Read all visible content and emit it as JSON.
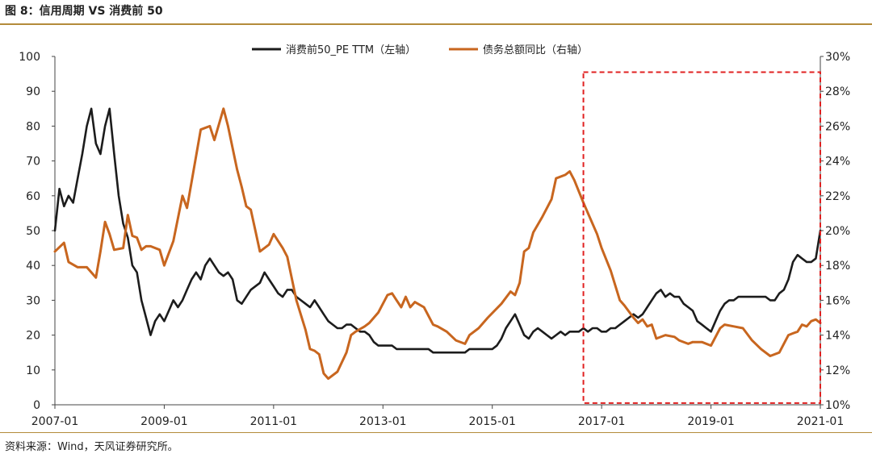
{
  "header": {
    "title": "图 8：信用周期 VS 消费前 50"
  },
  "footer": {
    "source": "资料来源：Wind，天风证券研究所。"
  },
  "colors": {
    "pe": "#1c1c1c",
    "credit": "#c8661f",
    "highlight": "#e02020",
    "axis": "#444444",
    "rule": "#b38b3a"
  },
  "chart_data": {
    "type": "line",
    "title": "图 8：信用周期 VS 消费前 50",
    "x_range": [
      "2007-01",
      "2021-01"
    ],
    "x_ticks": [
      "2007-01",
      "2009-01",
      "2011-01",
      "2013-01",
      "2015-01",
      "2017-01",
      "2019-01",
      "2021-01"
    ],
    "y_left": {
      "min": 0,
      "max": 100,
      "ticks": [
        "0",
        "10",
        "20",
        "30",
        "40",
        "50",
        "60",
        "70",
        "80",
        "90",
        "100"
      ]
    },
    "y_right": {
      "min": 10,
      "max": 30,
      "ticks": [
        "10%",
        "12%",
        "14%",
        "16%",
        "18%",
        "20%",
        "22%",
        "24%",
        "26%",
        "28%",
        "30%"
      ]
    },
    "legend": {
      "placement": "top-center"
    },
    "highlight_box": {
      "x_start": "2016-09",
      "x_end": "2021-01",
      "y_min": 0.5,
      "y_max": 95.5,
      "style": "dashed"
    },
    "series": [
      {
        "name": "消费前50_PE TTM（左轴）",
        "axis": "left",
        "color": "#1c1c1c",
        "points": [
          [
            "2007-01",
            50
          ],
          [
            "2007-02",
            62
          ],
          [
            "2007-03",
            57
          ],
          [
            "2007-04",
            60
          ],
          [
            "2007-05",
            58
          ],
          [
            "2007-06",
            65
          ],
          [
            "2007-07",
            72
          ],
          [
            "2007-08",
            80
          ],
          [
            "2007-09",
            85
          ],
          [
            "2007-10",
            75
          ],
          [
            "2007-11",
            72
          ],
          [
            "2007-12",
            80
          ],
          [
            "2008-01",
            85
          ],
          [
            "2008-02",
            72
          ],
          [
            "2008-03",
            60
          ],
          [
            "2008-04",
            52
          ],
          [
            "2008-05",
            48
          ],
          [
            "2008-06",
            40
          ],
          [
            "2008-07",
            38
          ],
          [
            "2008-08",
            30
          ],
          [
            "2008-09",
            25
          ],
          [
            "2008-10",
            20
          ],
          [
            "2008-11",
            24
          ],
          [
            "2008-12",
            26
          ],
          [
            "2009-01",
            24
          ],
          [
            "2009-02",
            27
          ],
          [
            "2009-03",
            30
          ],
          [
            "2009-04",
            28
          ],
          [
            "2009-05",
            30
          ],
          [
            "2009-06",
            33
          ],
          [
            "2009-07",
            36
          ],
          [
            "2009-08",
            38
          ],
          [
            "2009-09",
            36
          ],
          [
            "2009-10",
            40
          ],
          [
            "2009-11",
            42
          ],
          [
            "2009-12",
            40
          ],
          [
            "2010-01",
            38
          ],
          [
            "2010-02",
            37
          ],
          [
            "2010-03",
            38
          ],
          [
            "2010-04",
            36
          ],
          [
            "2010-05",
            30
          ],
          [
            "2010-06",
            29
          ],
          [
            "2010-07",
            31
          ],
          [
            "2010-08",
            33
          ],
          [
            "2010-09",
            34
          ],
          [
            "2010-10",
            35
          ],
          [
            "2010-11",
            38
          ],
          [
            "2010-12",
            36
          ],
          [
            "2011-01",
            34
          ],
          [
            "2011-02",
            32
          ],
          [
            "2011-03",
            31
          ],
          [
            "2011-04",
            33
          ],
          [
            "2011-05",
            33
          ],
          [
            "2011-06",
            31
          ],
          [
            "2011-07",
            30
          ],
          [
            "2011-08",
            29
          ],
          [
            "2011-09",
            28
          ],
          [
            "2011-10",
            30
          ],
          [
            "2011-11",
            28
          ],
          [
            "2011-12",
            26
          ],
          [
            "2012-01",
            24
          ],
          [
            "2012-02",
            23
          ],
          [
            "2012-03",
            22
          ],
          [
            "2012-04",
            22
          ],
          [
            "2012-05",
            23
          ],
          [
            "2012-06",
            23
          ],
          [
            "2012-07",
            22
          ],
          [
            "2012-08",
            21
          ],
          [
            "2012-09",
            21
          ],
          [
            "2012-10",
            20
          ],
          [
            "2012-11",
            18
          ],
          [
            "2012-12",
            17
          ],
          [
            "2013-01",
            17
          ],
          [
            "2013-02",
            17
          ],
          [
            "2013-03",
            17
          ],
          [
            "2013-04",
            16
          ],
          [
            "2013-05",
            16
          ],
          [
            "2013-06",
            16
          ],
          [
            "2013-07",
            16
          ],
          [
            "2013-08",
            16
          ],
          [
            "2013-09",
            16
          ],
          [
            "2013-10",
            16
          ],
          [
            "2013-11",
            16
          ],
          [
            "2013-12",
            15
          ],
          [
            "2014-01",
            15
          ],
          [
            "2014-02",
            15
          ],
          [
            "2014-03",
            15
          ],
          [
            "2014-04",
            15
          ],
          [
            "2014-05",
            15
          ],
          [
            "2014-06",
            15
          ],
          [
            "2014-07",
            15
          ],
          [
            "2014-08",
            16
          ],
          [
            "2014-09",
            16
          ],
          [
            "2014-10",
            16
          ],
          [
            "2014-11",
            16
          ],
          [
            "2014-12",
            16
          ],
          [
            "2015-01",
            16
          ],
          [
            "2015-02",
            17
          ],
          [
            "2015-03",
            19
          ],
          [
            "2015-04",
            22
          ],
          [
            "2015-05",
            24
          ],
          [
            "2015-06",
            26
          ],
          [
            "2015-07",
            23
          ],
          [
            "2015-08",
            20
          ],
          [
            "2015-09",
            19
          ],
          [
            "2015-10",
            21
          ],
          [
            "2015-11",
            22
          ],
          [
            "2015-12",
            21
          ],
          [
            "2016-01",
            20
          ],
          [
            "2016-02",
            19
          ],
          [
            "2016-03",
            20
          ],
          [
            "2016-04",
            21
          ],
          [
            "2016-05",
            20
          ],
          [
            "2016-06",
            21
          ],
          [
            "2016-07",
            21
          ],
          [
            "2016-08",
            21
          ],
          [
            "2016-09",
            22
          ],
          [
            "2016-10",
            21
          ],
          [
            "2016-11",
            22
          ],
          [
            "2016-12",
            22
          ],
          [
            "2017-01",
            21
          ],
          [
            "2017-02",
            21
          ],
          [
            "2017-03",
            22
          ],
          [
            "2017-04",
            22
          ],
          [
            "2017-05",
            23
          ],
          [
            "2017-06",
            24
          ],
          [
            "2017-07",
            25
          ],
          [
            "2017-08",
            26
          ],
          [
            "2017-09",
            25
          ],
          [
            "2017-10",
            26
          ],
          [
            "2017-11",
            28
          ],
          [
            "2017-12",
            30
          ],
          [
            "2018-01",
            32
          ],
          [
            "2018-02",
            33
          ],
          [
            "2018-03",
            31
          ],
          [
            "2018-04",
            32
          ],
          [
            "2018-05",
            31
          ],
          [
            "2018-06",
            31
          ],
          [
            "2018-07",
            29
          ],
          [
            "2018-08",
            28
          ],
          [
            "2018-09",
            27
          ],
          [
            "2018-10",
            24
          ],
          [
            "2018-11",
            23
          ],
          [
            "2018-12",
            22
          ],
          [
            "2019-01",
            21
          ],
          [
            "2019-02",
            24
          ],
          [
            "2019-03",
            27
          ],
          [
            "2019-04",
            29
          ],
          [
            "2019-05",
            30
          ],
          [
            "2019-06",
            30
          ],
          [
            "2019-07",
            31
          ],
          [
            "2019-08",
            31
          ],
          [
            "2019-09",
            31
          ],
          [
            "2019-10",
            31
          ],
          [
            "2019-11",
            31
          ],
          [
            "2019-12",
            31
          ],
          [
            "2020-01",
            31
          ],
          [
            "2020-02",
            30
          ],
          [
            "2020-03",
            30
          ],
          [
            "2020-04",
            32
          ],
          [
            "2020-05",
            33
          ],
          [
            "2020-06",
            36
          ],
          [
            "2020-07",
            41
          ],
          [
            "2020-08",
            43
          ],
          [
            "2020-09",
            42
          ],
          [
            "2020-10",
            41
          ],
          [
            "2020-11",
            41
          ],
          [
            "2020-12",
            42
          ],
          [
            "2021-01",
            50
          ]
        ]
      },
      {
        "name": "债务总额同比（右轴）",
        "axis": "right",
        "color": "#c8661f",
        "points": [
          [
            "2007-01",
            18.8
          ],
          [
            "2007-03",
            19.3
          ],
          [
            "2007-04",
            18.2
          ],
          [
            "2007-06",
            17.9
          ],
          [
            "2007-08",
            17.9
          ],
          [
            "2007-10",
            17.3
          ],
          [
            "2007-11",
            18.8
          ],
          [
            "2007-12",
            20.5
          ],
          [
            "2008-01",
            19.8
          ],
          [
            "2008-02",
            18.9
          ],
          [
            "2008-04",
            19.0
          ],
          [
            "2008-05",
            20.9
          ],
          [
            "2008-06",
            19.7
          ],
          [
            "2008-07",
            19.6
          ],
          [
            "2008-08",
            18.9
          ],
          [
            "2008-09",
            19.1
          ],
          [
            "2008-10",
            19.1
          ],
          [
            "2008-12",
            18.9
          ],
          [
            "2009-01",
            18.0
          ],
          [
            "2009-03",
            19.4
          ],
          [
            "2009-05",
            22.0
          ],
          [
            "2009-06",
            21.3
          ],
          [
            "2009-07",
            22.8
          ],
          [
            "2009-09",
            25.8
          ],
          [
            "2009-11",
            26.0
          ],
          [
            "2009-12",
            25.2
          ],
          [
            "2010-02",
            27.0
          ],
          [
            "2010-03",
            26.0
          ],
          [
            "2010-05",
            23.5
          ],
          [
            "2010-06",
            22.5
          ],
          [
            "2010-07",
            21.4
          ],
          [
            "2010-08",
            21.2
          ],
          [
            "2010-09",
            20.0
          ],
          [
            "2010-10",
            18.8
          ],
          [
            "2010-12",
            19.2
          ],
          [
            "2011-01",
            19.8
          ],
          [
            "2011-03",
            19.0
          ],
          [
            "2011-04",
            18.5
          ],
          [
            "2011-06",
            16.0
          ],
          [
            "2011-08",
            14.3
          ],
          [
            "2011-09",
            13.2
          ],
          [
            "2011-10",
            13.1
          ],
          [
            "2011-11",
            12.9
          ],
          [
            "2011-12",
            11.8
          ],
          [
            "2012-01",
            11.5
          ],
          [
            "2012-03",
            11.9
          ],
          [
            "2012-05",
            13.0
          ],
          [
            "2012-06",
            14.0
          ],
          [
            "2012-07",
            14.2
          ],
          [
            "2012-09",
            14.5
          ],
          [
            "2012-10",
            14.7
          ],
          [
            "2012-12",
            15.3
          ],
          [
            "2013-02",
            16.3
          ],
          [
            "2013-03",
            16.4
          ],
          [
            "2013-04",
            16.0
          ],
          [
            "2013-05",
            15.6
          ],
          [
            "2013-06",
            16.2
          ],
          [
            "2013-07",
            15.6
          ],
          [
            "2013-08",
            15.9
          ],
          [
            "2013-10",
            15.6
          ],
          [
            "2013-12",
            14.6
          ],
          [
            "2014-01",
            14.5
          ],
          [
            "2014-03",
            14.2
          ],
          [
            "2014-05",
            13.7
          ],
          [
            "2014-07",
            13.5
          ],
          [
            "2014-08",
            14.0
          ],
          [
            "2014-10",
            14.4
          ],
          [
            "2014-12",
            15.0
          ],
          [
            "2015-03",
            15.8
          ],
          [
            "2015-05",
            16.5
          ],
          [
            "2015-06",
            16.3
          ],
          [
            "2015-07",
            17.0
          ],
          [
            "2015-08",
            18.8
          ],
          [
            "2015-09",
            19.0
          ],
          [
            "2015-10",
            19.9
          ],
          [
            "2015-12",
            20.8
          ],
          [
            "2016-02",
            21.8
          ],
          [
            "2016-03",
            23.0
          ],
          [
            "2016-05",
            23.2
          ],
          [
            "2016-06",
            23.4
          ],
          [
            "2016-07",
            22.9
          ],
          [
            "2016-09",
            21.6
          ],
          [
            "2016-10",
            21.0
          ],
          [
            "2016-12",
            19.8
          ],
          [
            "2017-01",
            19.0
          ],
          [
            "2017-03",
            17.7
          ],
          [
            "2017-05",
            16.0
          ],
          [
            "2017-06",
            15.7
          ],
          [
            "2017-08",
            15.0
          ],
          [
            "2017-09",
            14.7
          ],
          [
            "2017-10",
            14.9
          ],
          [
            "2017-11",
            14.5
          ],
          [
            "2017-12",
            14.6
          ],
          [
            "2018-01",
            13.8
          ],
          [
            "2018-03",
            14.0
          ],
          [
            "2018-05",
            13.9
          ],
          [
            "2018-06",
            13.7
          ],
          [
            "2018-08",
            13.5
          ],
          [
            "2018-09",
            13.6
          ],
          [
            "2018-11",
            13.6
          ],
          [
            "2019-01",
            13.4
          ],
          [
            "2019-03",
            14.4
          ],
          [
            "2019-04",
            14.6
          ],
          [
            "2019-06",
            14.5
          ],
          [
            "2019-08",
            14.4
          ],
          [
            "2019-10",
            13.7
          ],
          [
            "2019-12",
            13.2
          ],
          [
            "2020-02",
            12.8
          ],
          [
            "2020-04",
            13.0
          ],
          [
            "2020-06",
            14.0
          ],
          [
            "2020-07",
            14.1
          ],
          [
            "2020-08",
            14.2
          ],
          [
            "2020-09",
            14.6
          ],
          [
            "2020-10",
            14.5
          ],
          [
            "2020-11",
            14.8
          ],
          [
            "2020-12",
            14.9
          ],
          [
            "2021-01",
            14.7
          ]
        ]
      }
    ]
  }
}
